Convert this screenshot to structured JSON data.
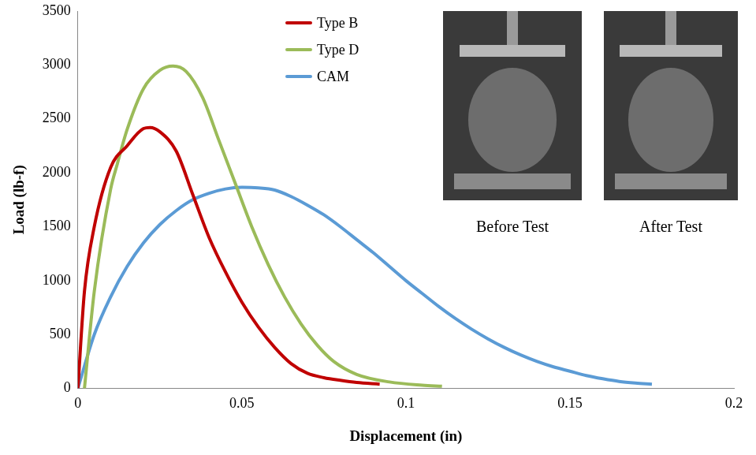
{
  "chart_data": {
    "type": "line",
    "x_label": "Displacement (in)",
    "y_label": "Load (lb-f)",
    "xlim": [
      0,
      0.2
    ],
    "xticks": [
      0,
      0.05,
      0.1,
      0.15,
      0.2
    ],
    "ylim": [
      0,
      3500
    ],
    "yticks": [
      0,
      500,
      1000,
      1500,
      2000,
      2500,
      3000,
      3500
    ],
    "grid": false,
    "legend": "top",
    "annotations": [
      "Before Test",
      "After Test"
    ],
    "series": [
      {
        "name": "Type B",
        "color": "#c00000",
        "x": [
          0,
          0.002,
          0.005,
          0.01,
          0.015,
          0.02,
          0.022,
          0.025,
          0.03,
          0.035,
          0.04,
          0.045,
          0.05,
          0.055,
          0.06,
          0.065,
          0.07,
          0.075,
          0.08,
          0.085,
          0.092
        ],
        "values": [
          0,
          900,
          1500,
          2050,
          2250,
          2410,
          2420,
          2380,
          2200,
          1800,
          1400,
          1080,
          800,
          570,
          380,
          230,
          140,
          100,
          75,
          55,
          40
        ]
      },
      {
        "name": "Type D",
        "color": "#9bbb59",
        "x": [
          0.002,
          0.005,
          0.01,
          0.012,
          0.015,
          0.02,
          0.025,
          0.029,
          0.033,
          0.038,
          0.043,
          0.048,
          0.053,
          0.058,
          0.063,
          0.068,
          0.073,
          0.078,
          0.085,
          0.095,
          0.105,
          0.111
        ],
        "values": [
          0,
          900,
          1850,
          2080,
          2400,
          2780,
          2950,
          2990,
          2940,
          2700,
          2300,
          1900,
          1500,
          1150,
          850,
          600,
          400,
          250,
          130,
          60,
          30,
          20
        ]
      },
      {
        "name": "CAM",
        "color": "#5b9bd5",
        "x": [
          0,
          0.005,
          0.01,
          0.015,
          0.02,
          0.025,
          0.03,
          0.035,
          0.04,
          0.045,
          0.05,
          0.055,
          0.06,
          0.065,
          0.07,
          0.075,
          0.08,
          0.085,
          0.09,
          0.095,
          0.1,
          0.105,
          0.11,
          0.115,
          0.12,
          0.125,
          0.13,
          0.135,
          0.14,
          0.145,
          0.15,
          0.155,
          0.16,
          0.165,
          0.17,
          0.175
        ],
        "values": [
          0,
          500,
          850,
          1130,
          1350,
          1520,
          1650,
          1750,
          1810,
          1850,
          1865,
          1860,
          1840,
          1780,
          1700,
          1610,
          1500,
          1380,
          1260,
          1130,
          1000,
          880,
          760,
          650,
          550,
          460,
          380,
          310,
          250,
          200,
          160,
          120,
          90,
          65,
          50,
          40
        ]
      }
    ]
  }
}
